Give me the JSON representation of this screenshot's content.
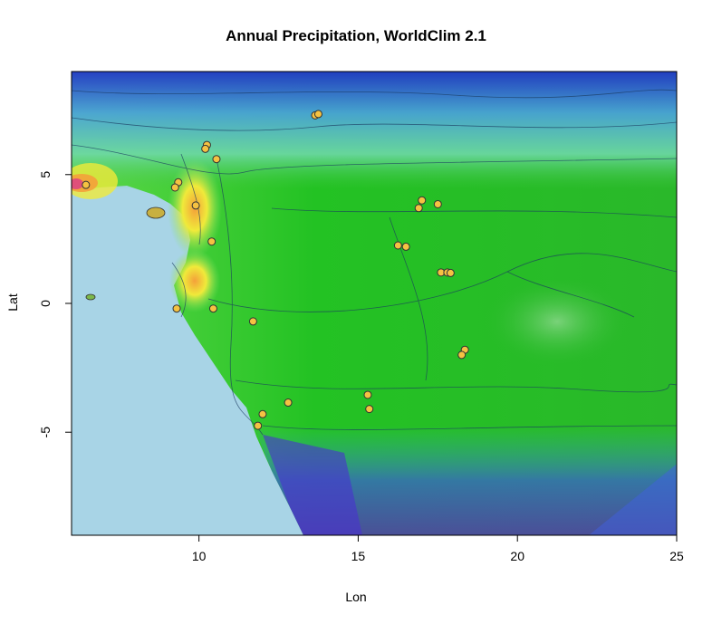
{
  "title": "Annual Precipitation, WorldClim 2.1",
  "axes": {
    "x": {
      "label": "Lon",
      "range": [
        6,
        25
      ],
      "ticks": [
        10,
        15,
        20,
        25
      ],
      "tick_labels": [
        "10",
        "15",
        "20",
        "25"
      ]
    },
    "y": {
      "label": "Lat",
      "range": [
        -9,
        9
      ],
      "ticks": [
        5,
        0,
        -5
      ],
      "tick_labels": [
        "5",
        "0",
        "-5"
      ]
    }
  },
  "colors": {
    "ocean": "#a8d4e6",
    "very_wet": "#2a1fd4",
    "wet": "#1fc41f",
    "moderate": "#7ee26a",
    "high": "#f0ea3a",
    "very_high": "#f4a03a",
    "extreme": "#e0507a",
    "point_fill": "#f5c242",
    "point_stroke": "#333333"
  },
  "points": [
    {
      "lon": 13.65,
      "lat": 7.3
    },
    {
      "lon": 13.75,
      "lat": 7.35
    },
    {
      "lon": 10.25,
      "lat": 6.15
    },
    {
      "lon": 10.2,
      "lat": 6.0
    },
    {
      "lon": 10.55,
      "lat": 5.6
    },
    {
      "lon": 6.45,
      "lat": 4.6
    },
    {
      "lon": 9.35,
      "lat": 4.7
    },
    {
      "lon": 9.25,
      "lat": 4.5
    },
    {
      "lon": 9.9,
      "lat": 3.8
    },
    {
      "lon": 10.4,
      "lat": 2.4
    },
    {
      "lon": 17.0,
      "lat": 4.0
    },
    {
      "lon": 16.9,
      "lat": 3.7
    },
    {
      "lon": 17.5,
      "lat": 3.85
    },
    {
      "lon": 16.25,
      "lat": 2.25
    },
    {
      "lon": 16.5,
      "lat": 2.2
    },
    {
      "lon": 17.6,
      "lat": 1.2
    },
    {
      "lon": 17.8,
      "lat": 1.2
    },
    {
      "lon": 17.9,
      "lat": 1.18
    },
    {
      "lon": 9.3,
      "lat": -0.2
    },
    {
      "lon": 10.45,
      "lat": -0.2
    },
    {
      "lon": 11.7,
      "lat": -0.7
    },
    {
      "lon": 18.35,
      "lat": -1.8
    },
    {
      "lon": 18.25,
      "lat": -2.0
    },
    {
      "lon": 15.3,
      "lat": -3.55
    },
    {
      "lon": 12.8,
      "lat": -3.85
    },
    {
      "lon": 15.35,
      "lat": -4.1
    },
    {
      "lon": 12.0,
      "lat": -4.3
    },
    {
      "lon": 11.85,
      "lat": -4.75
    }
  ]
}
